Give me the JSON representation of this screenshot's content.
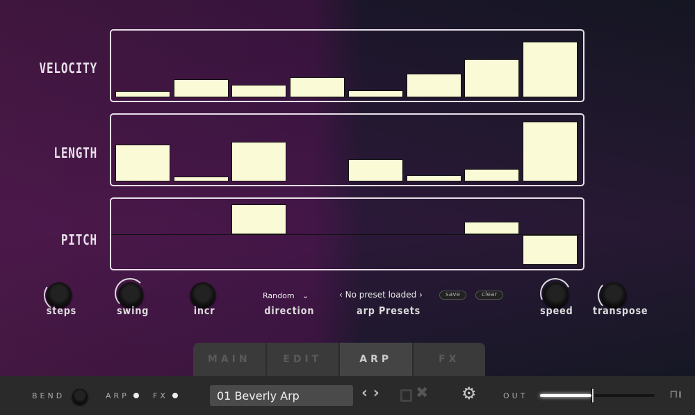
{
  "lanes": [
    {
      "label": "VELOCITY",
      "type": "unipolar",
      "values": [
        0.09,
        0.27,
        0.19,
        0.31,
        0.11,
        0.36,
        0.58,
        0.84
      ]
    },
    {
      "label": "LENGTH",
      "type": "unipolar",
      "values": [
        0.56,
        0.07,
        0.6,
        0,
        0.34,
        0.1,
        0.19,
        0.91
      ]
    },
    {
      "label": "PITCH",
      "type": "bipolar",
      "values": [
        0,
        0,
        0.94,
        0,
        0,
        0,
        0.4,
        -0.94
      ]
    }
  ],
  "bar_color": "#fbfad6",
  "controls": {
    "steps": "steps",
    "swing": "swing",
    "incr": "incr",
    "direction": "direction",
    "direction_value": "Random",
    "presets_label": "arp Presets",
    "preset_value": "No preset loaded",
    "save": "save",
    "clear": "clear",
    "speed": "speed",
    "transpose": "transpose"
  },
  "tabs": [
    "MAIN",
    "EDIT",
    "ARP",
    "FX"
  ],
  "active_tab": "ARP",
  "bottom": {
    "bend": "BEND",
    "arp": "ARP",
    "fx": "FX",
    "preset": "01 Beverly Arp",
    "out": "OUT",
    "out_level": 0.45,
    "logo": "bn"
  }
}
